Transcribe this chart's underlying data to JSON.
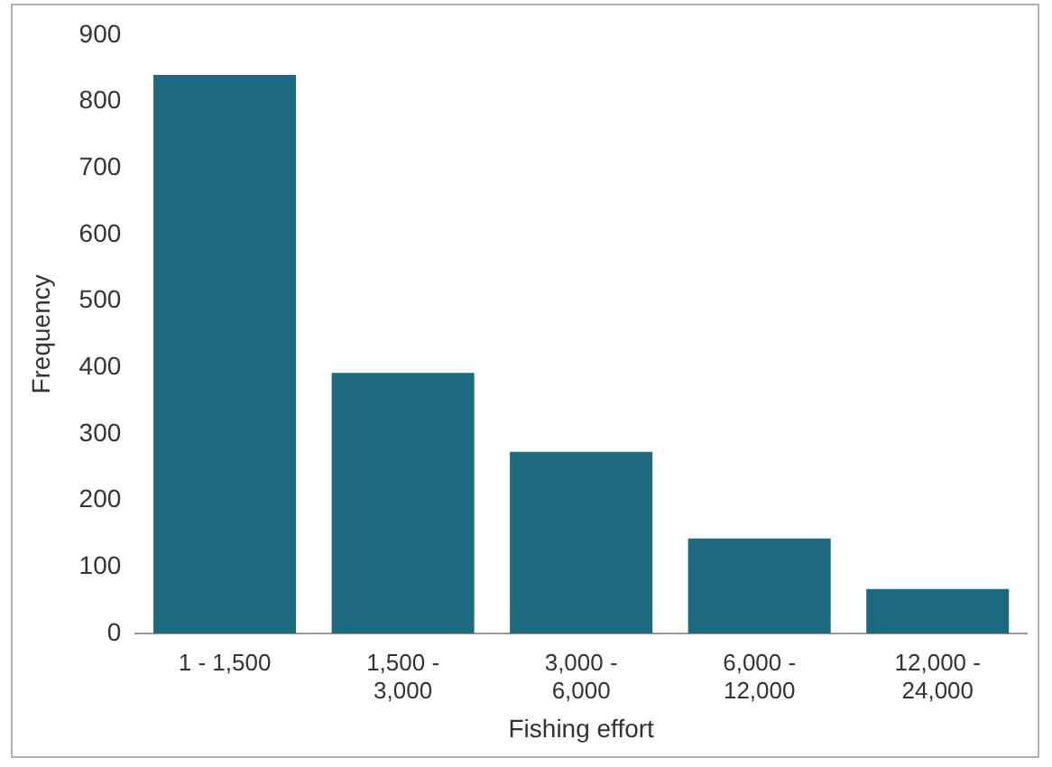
{
  "chart_data": {
    "type": "bar",
    "xlabel": "Fishing effort",
    "ylabel": "Frequency",
    "categories": [
      "1 - 1,500",
      "1,500 - 3,000",
      "3,000 - 6,000",
      "6,000 - 12,000",
      "12,000 - 24,000"
    ],
    "values": [
      840,
      392,
      273,
      143,
      67
    ],
    "color": "#1b6a80",
    "ylim": [
      0,
      900
    ],
    "yticks": [
      0,
      100,
      200,
      300,
      400,
      500,
      600,
      700,
      800,
      900
    ],
    "grid": false,
    "legend": false
  }
}
